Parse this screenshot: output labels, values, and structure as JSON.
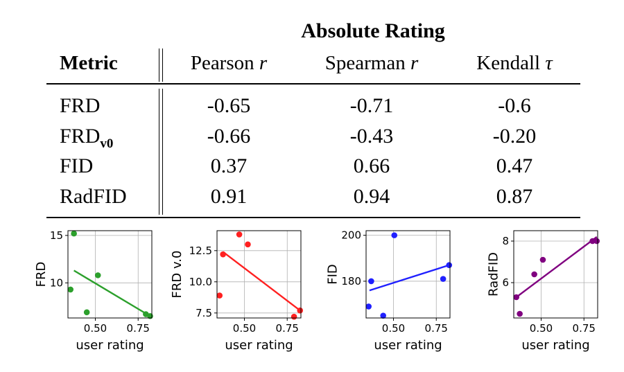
{
  "table": {
    "group_title": "Absolute Rating",
    "headers": {
      "metric": "Metric",
      "pearson_prefix": "Pearson ",
      "pearson_sym": "r",
      "spearman_prefix": "Spearman ",
      "spearman_sym": "r",
      "kendall_prefix": "Kendall ",
      "kendall_sym": "τ"
    },
    "rows": [
      {
        "metric": "FRD",
        "sub": "",
        "pearson": "-0.65",
        "spearman": "-0.71",
        "kendall": "-0.6"
      },
      {
        "metric": "FRD",
        "sub": "v0",
        "pearson": "-0.66",
        "spearman": "-0.43",
        "kendall": "-0.20"
      },
      {
        "metric": "FID",
        "sub": "",
        "pearson": "0.37",
        "spearman": "0.66",
        "kendall": "0.47"
      },
      {
        "metric": "RadFID",
        "sub": "",
        "pearson": "0.91",
        "spearman": "0.94",
        "kendall": "0.87"
      }
    ]
  },
  "chart_data": [
    {
      "type": "scatter",
      "ylabel": "FRD",
      "xlabel": "user rating",
      "color": "#2ca02c",
      "xlim": [
        0.34,
        0.83
      ],
      "ylim": [
        6.3,
        15.5
      ],
      "xticks": [
        "0.50",
        "0.75"
      ],
      "xtick_values": [
        0.5,
        0.75
      ],
      "yticks": [
        "10",
        "15"
      ],
      "ytick_values": [
        10,
        15
      ],
      "points": [
        [
          0.375,
          15.2
        ],
        [
          0.355,
          9.3
        ],
        [
          0.45,
          6.9
        ],
        [
          0.515,
          10.8
        ],
        [
          0.795,
          6.7
        ],
        [
          0.82,
          6.5
        ]
      ],
      "fit": [
        [
          0.375,
          11.3
        ],
        [
          0.82,
          6.5
        ]
      ],
      "grid": true
    },
    {
      "type": "scatter",
      "ylabel": "FRD v.0",
      "xlabel": "user rating",
      "color": "#ff2020",
      "xlim": [
        0.34,
        0.83
      ],
      "ylim": [
        7.1,
        14.1
      ],
      "xticks": [
        "0.50",
        "0.75"
      ],
      "xtick_values": [
        0.5,
        0.75
      ],
      "yticks": [
        "7.5",
        "10.0",
        "12.5"
      ],
      "ytick_values": [
        7.5,
        10.0,
        12.5
      ],
      "points": [
        [
          0.355,
          8.9
        ],
        [
          0.375,
          12.2
        ],
        [
          0.47,
          13.8
        ],
        [
          0.52,
          13.0
        ],
        [
          0.79,
          7.2
        ],
        [
          0.825,
          7.7
        ]
      ],
      "fit": [
        [
          0.375,
          12.4
        ],
        [
          0.825,
          7.7
        ]
      ],
      "grid": true
    },
    {
      "type": "scatter",
      "ylabel": "FID",
      "xlabel": "user rating",
      "color": "#2020ff",
      "xlim": [
        0.34,
        0.83
      ],
      "ylim": [
        164,
        202
      ],
      "xticks": [
        "0.50",
        "0.75"
      ],
      "xtick_values": [
        0.5,
        0.75
      ],
      "yticks": [
        "180",
        "200"
      ],
      "ytick_values": [
        180,
        200
      ],
      "points": [
        [
          0.355,
          169
        ],
        [
          0.37,
          180
        ],
        [
          0.44,
          165
        ],
        [
          0.505,
          200
        ],
        [
          0.79,
          181
        ],
        [
          0.825,
          187
        ]
      ],
      "fit": [
        [
          0.36,
          176
        ],
        [
          0.825,
          187
        ]
      ],
      "grid": true
    },
    {
      "type": "scatter",
      "ylabel": "RadFID",
      "xlabel": "user rating",
      "color": "#800080",
      "xlim": [
        0.34,
        0.83
      ],
      "ylim": [
        4.3,
        8.5
      ],
      "xticks": [
        "0.50",
        "0.75"
      ],
      "xtick_values": [
        0.5,
        0.75
      ],
      "yticks": [
        "6",
        "8"
      ],
      "ytick_values": [
        6,
        8
      ],
      "points": [
        [
          0.355,
          5.3
        ],
        [
          0.375,
          4.5
        ],
        [
          0.46,
          6.4
        ],
        [
          0.51,
          7.1
        ],
        [
          0.8,
          8.0
        ],
        [
          0.825,
          8.0
        ]
      ],
      "fit": [
        [
          0.355,
          5.3
        ],
        [
          0.825,
          8.2
        ]
      ],
      "grid": true
    }
  ]
}
